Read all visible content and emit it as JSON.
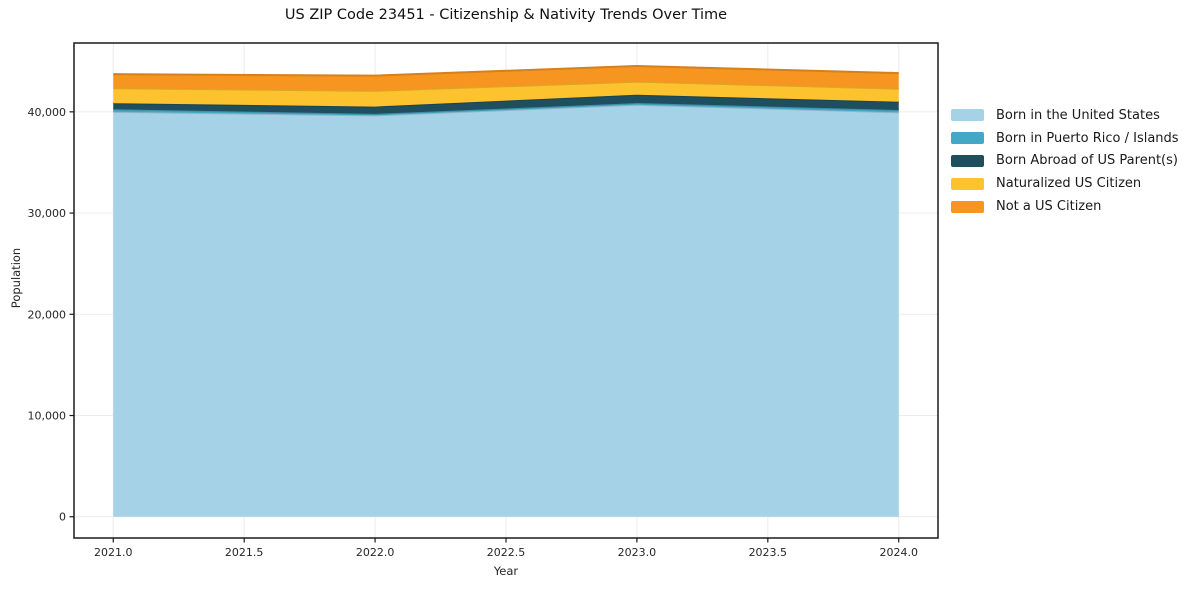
{
  "chart_data": {
    "type": "area",
    "stacked": true,
    "title": "US ZIP Code 23451 - Citizenship & Nativity Trends Over Time",
    "xlabel": "Year",
    "ylabel": "Population",
    "x": [
      2021,
      2022,
      2023,
      2024
    ],
    "series": [
      {
        "name": "Born in the United States",
        "color": "#a6d2e7",
        "values": [
          40000,
          39650,
          40700,
          39950
        ]
      },
      {
        "name": "Born in Puerto Rico / Islands",
        "color": "#43a7c5",
        "values": [
          250,
          150,
          170,
          230
        ]
      },
      {
        "name": "Born Abroad of US Parent(s)",
        "color": "#1f4e5f",
        "values": [
          600,
          720,
          820,
          820
        ]
      },
      {
        "name": "Naturalized US Citizen",
        "color": "#fcc32f",
        "values": [
          1480,
          1550,
          1290,
          1280
        ]
      },
      {
        "name": "Not a US Citizen",
        "color": "#f79521",
        "values": [
          1390,
          1510,
          1550,
          1550
        ]
      }
    ],
    "stack_totals": [
      43720,
      43580,
      44530,
      43830
    ],
    "xlim": [
      2020.85,
      2024.15
    ],
    "ylim": [
      -2100,
      46800
    ],
    "xticks": [
      2021.0,
      2021.5,
      2022.0,
      2022.5,
      2023.0,
      2023.5,
      2024.0
    ],
    "xtick_labels": [
      "2021.0",
      "2021.5",
      "2022.0",
      "2022.5",
      "2023.0",
      "2023.5",
      "2024.0"
    ],
    "yticks": [
      0,
      10000,
      20000,
      30000,
      40000
    ],
    "ytick_labels": [
      "0",
      "10,000",
      "20,000",
      "30,000",
      "40,000"
    ],
    "grid": true,
    "legend_position": "right",
    "grid_color": "#ececec",
    "axis_color": "#1a1a1a",
    "tick_label_color": "#262626"
  }
}
